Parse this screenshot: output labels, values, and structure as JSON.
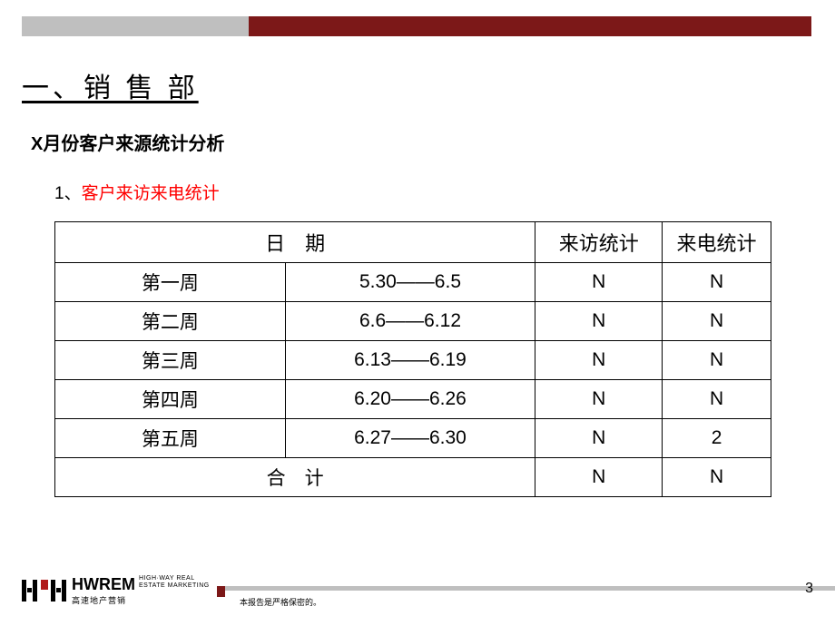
{
  "header": {
    "gray_bar_color": "#bfbfbf",
    "maroon_bar_color": "#7c1818"
  },
  "section_title": "一、销 售 部",
  "subtitle": "X月份客户来源统计分析",
  "stat_title_prefix": "1、",
  "stat_title_red": "客户来访来电统计",
  "table": {
    "columns": [
      "日　期",
      "来访统计",
      "来电统计"
    ],
    "rows": [
      {
        "week": "第一周",
        "date": "5.30——6.5",
        "visit": "N",
        "call": "N"
      },
      {
        "week": "第二周",
        "date": "6.6——6.12",
        "visit": "N",
        "call": "N"
      },
      {
        "week": "第三周",
        "date": "6.13——6.19",
        "visit": "N",
        "call": "N"
      },
      {
        "week": "第四周",
        "date": "6.20——6.26",
        "visit": "N",
        "call": "N"
      },
      {
        "week": "第五周",
        "date": "6.27——6.30",
        "visit": "N",
        "call": "2"
      }
    ],
    "total_label": "合　计",
    "total_visit": "N",
    "total_call": "N",
    "border_color": "#000000",
    "header_fontsize": 22,
    "cell_fontsize": 21
  },
  "footer": {
    "brand_main": "HWREM",
    "brand_tag_line1": "HIGH·WAY REAL",
    "brand_tag_line2": "ESTATE MARKETING",
    "brand_cn": "高速地产营销",
    "note": "本报告是严格保密的。",
    "maroon_color": "#7c1818",
    "gray_color": "#bfbfbf",
    "logo_red": "#b01818"
  },
  "page_number": "3"
}
